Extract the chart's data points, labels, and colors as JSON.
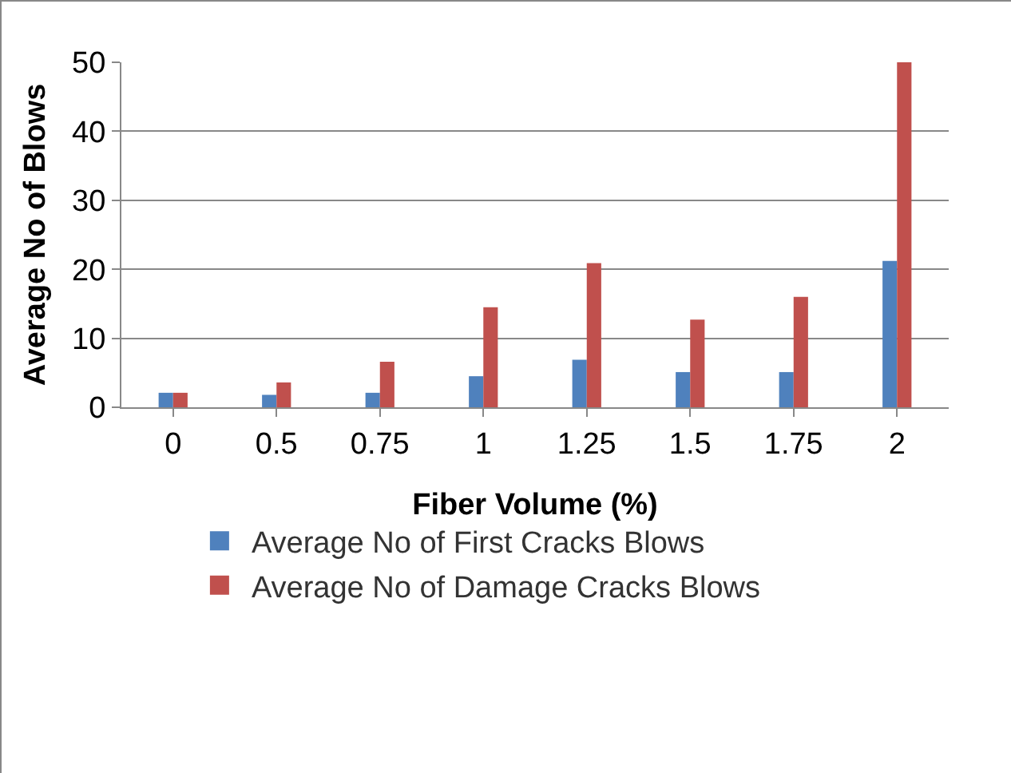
{
  "chart_data": {
    "type": "bar",
    "xlabel": "Fiber Volume (%)",
    "ylabel": "Average No of Blows",
    "categories": [
      "0",
      "0.5",
      "0.75",
      "1",
      "1.25",
      "1.5",
      "1.75",
      "2"
    ],
    "series": [
      {
        "name": "Average No of First Cracks Blows",
        "color": "#4f81bd",
        "values": [
          2.1,
          1.8,
          2.1,
          4.5,
          6.9,
          5.1,
          5.1,
          21.2
        ]
      },
      {
        "name": "Average No of Damage Cracks Blows",
        "color": "#c0504d",
        "values": [
          2.1,
          3.6,
          6.6,
          14.5,
          20.9,
          12.7,
          16,
          50
        ]
      }
    ],
    "ylim": [
      0,
      50
    ],
    "yticks": [
      0,
      10,
      20,
      30,
      40,
      50
    ],
    "grid": "y",
    "legend": "bottom"
  }
}
